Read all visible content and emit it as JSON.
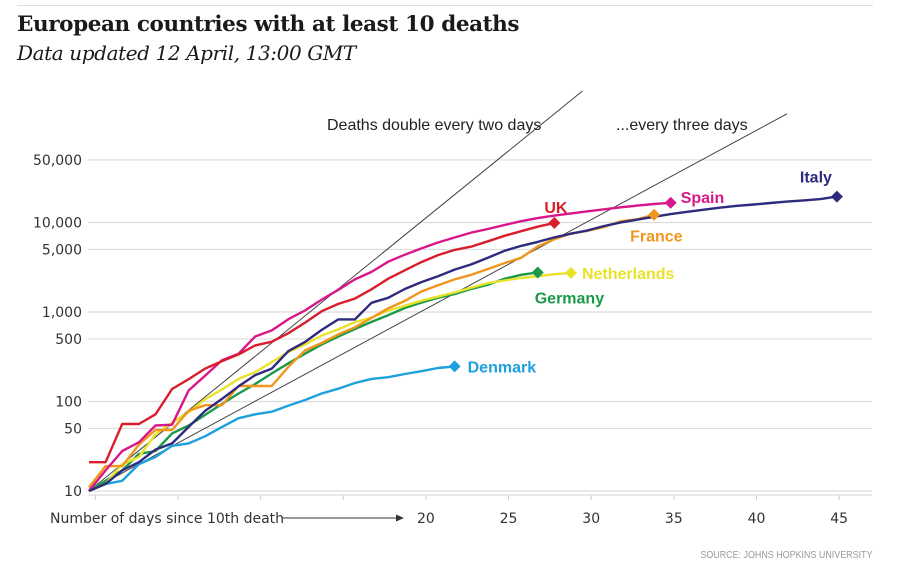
{
  "header": {
    "title": "European countries with at least 10 deaths",
    "subtitle": "Data updated 12 April, 13:00 GMT"
  },
  "source": "SOURCE: JOHNS HOPKINS UNIVERSITY",
  "chart_data": {
    "type": "line",
    "title": "European countries with at least 10 deaths",
    "subtitle": "Data updated 12 April, 13:00 GMT",
    "xlabel": "Number of days since 10th death",
    "ylabel": "",
    "yscale": "log",
    "xlim": [
      0,
      47
    ],
    "ylim": [
      10,
      80000
    ],
    "grid": true,
    "yticks": [
      10,
      50,
      100,
      500,
      1000,
      5000,
      10000,
      50000
    ],
    "ytick_labels": [
      "10",
      "50",
      "100",
      "500",
      "1,000",
      "5,000",
      "10,000",
      "50,000"
    ],
    "xticks": [
      5,
      10,
      15,
      20,
      25,
      30,
      35,
      40,
      45
    ],
    "xtick_labels_shown": [
      "20",
      "25",
      "30",
      "35",
      "40",
      "45"
    ],
    "reference_lines": [
      {
        "name": "Deaths double every two days",
        "doubling_days": 2
      },
      {
        "name": "...every three days",
        "doubling_days": 3
      }
    ],
    "series": [
      {
        "name": "Denmark",
        "color": "#1ea0dc",
        "values": [
          11,
          12,
          13,
          20,
          24,
          32,
          34,
          41,
          52,
          65,
          72,
          77,
          90,
          104,
          123,
          139,
          161,
          179,
          187,
          203,
          218,
          237,
          247
        ]
      },
      {
        "name": "Germany",
        "color": "#1a9a48",
        "values": [
          10,
          13,
          17,
          26,
          28,
          44,
          54,
          71,
          94,
          123,
          157,
          206,
          267,
          342,
          433,
          533,
          645,
          775,
          920,
          1107,
          1275,
          1444,
          1584,
          1810,
          2016,
          2349,
          2607,
          2767
        ]
      },
      {
        "name": "Netherlands",
        "color": "#e9e22a",
        "values": [
          10,
          12,
          20,
          24,
          43,
          58,
          76,
          106,
          136,
          179,
          213,
          276,
          356,
          434,
          546,
          639,
          771,
          864,
          1039,
          1173,
          1339,
          1487,
          1651,
          1867,
          2101,
          2248,
          2396,
          2511,
          2643,
          2737
        ]
      },
      {
        "name": "France",
        "color": "#f0961e",
        "values": [
          11,
          19,
          19,
          33,
          48,
          48,
          79,
          91,
          91,
          149,
          149,
          149,
          244,
          372,
          450,
          562,
          674,
          860,
          1100,
          1331,
          1696,
          1995,
          2314,
          2606,
          3024,
          3523,
          4032,
          5387,
          6507,
          7560,
          8078,
          8911,
          10328,
          10869,
          12210
        ]
      },
      {
        "name": "Spain",
        "color": "#d8178a",
        "values": [
          10,
          17,
          28,
          35,
          54,
          55,
          133,
          195,
          289,
          342,
          533,
          623,
          830,
          1043,
          1375,
          1772,
          2311,
          2808,
          3647,
          4365,
          5138,
          5982,
          6803,
          7716,
          8464,
          9387,
          10348,
          11198,
          11947,
          12641,
          13341,
          14045,
          14792,
          15447,
          16081,
          16606
        ]
      },
      {
        "name": "UK",
        "color": "#d81e2a",
        "values": [
          21,
          21,
          56,
          56,
          72,
          138,
          178,
          234,
          282,
          336,
          423,
          466,
          580,
          761,
          1021,
          1231,
          1411,
          1793,
          2357,
          2926,
          3611,
          4320,
          4943,
          5385,
          6171,
          7111,
          7993,
          8974,
          9892
        ]
      },
      {
        "name": "Italy",
        "color": "#2e2a7e",
        "values": [
          10,
          12,
          17,
          21,
          29,
          34,
          52,
          79,
          107,
          148,
          197,
          233,
          366,
          463,
          631,
          827,
          827,
          1266,
          1441,
          1809,
          2158,
          2503,
          2978,
          3405,
          4032,
          4825,
          5476,
          6077,
          6820,
          7503,
          8165,
          9134,
          10023,
          10779,
          11591,
          12428,
          13155,
          13915,
          14681,
          15362,
          15887,
          16523,
          17127,
          17669,
          18279,
          19468
        ]
      }
    ],
    "annotations": [
      "Deaths double every two days",
      "...every three days"
    ]
  }
}
